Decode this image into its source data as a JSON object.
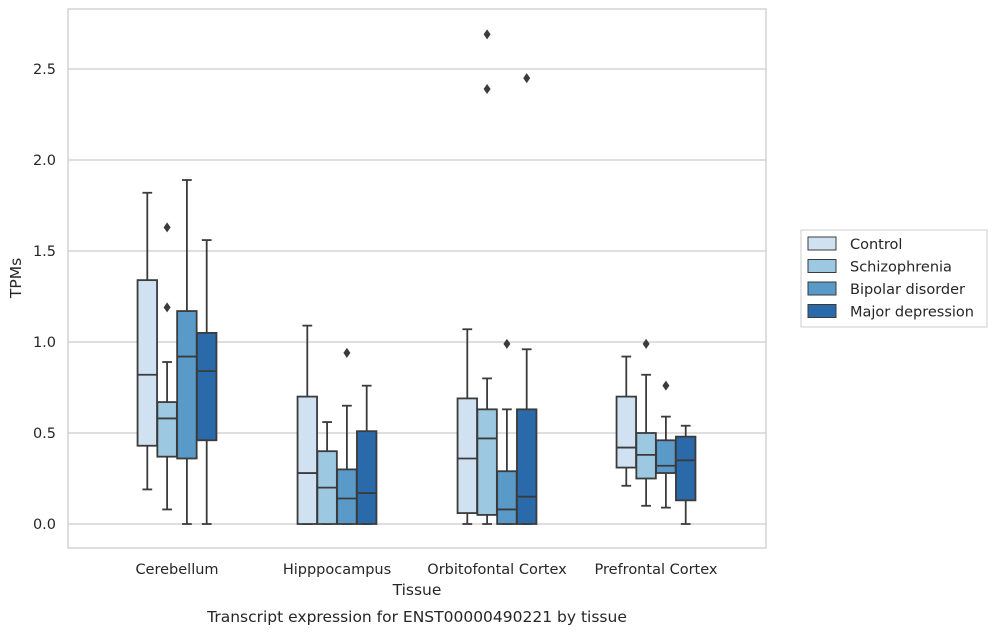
{
  "chart_data": {
    "type": "box",
    "title": "",
    "caption": "Transcript expression for ENST00000490221 by tissue",
    "xlabel": "Tissue",
    "ylabel": "TPMs",
    "ylim": [
      -0.13,
      2.85
    ],
    "yticks": [
      0.0,
      0.5,
      1.0,
      1.5,
      2.0,
      2.5
    ],
    "ytick_labels": [
      "0.0",
      "0.5",
      "1.0",
      "1.5",
      "2.0",
      "2.5"
    ],
    "grid": "horizontal",
    "legend_position": "right",
    "categories": [
      "Cerebellum",
      "Hipppocampus",
      "Orbitofontal Cortex",
      "Prefrontal Cortex"
    ],
    "series": [
      {
        "name": "Control",
        "color": "#d0e1f1",
        "boxes": [
          {
            "whislo": 0.19,
            "q1": 0.43,
            "med": 0.82,
            "q3": 1.34,
            "whishi": 1.82,
            "fliers": []
          },
          {
            "whislo": 0.0,
            "q1": 0.0,
            "med": 0.28,
            "q3": 0.7,
            "whishi": 1.09,
            "fliers": []
          },
          {
            "whislo": 0.0,
            "q1": 0.06,
            "med": 0.36,
            "q3": 0.69,
            "whishi": 1.07,
            "fliers": []
          },
          {
            "whislo": 0.21,
            "q1": 0.31,
            "med": 0.42,
            "q3": 0.7,
            "whishi": 0.92,
            "fliers": []
          }
        ]
      },
      {
        "name": "Schizophrenia",
        "color": "#9cc9e1",
        "boxes": [
          {
            "whislo": 0.08,
            "q1": 0.37,
            "med": 0.58,
            "q3": 0.67,
            "whishi": 0.89,
            "fliers": [
              1.19,
              1.63
            ]
          },
          {
            "whislo": 0.0,
            "q1": 0.0,
            "med": 0.2,
            "q3": 0.4,
            "whishi": 0.56,
            "fliers": []
          },
          {
            "whislo": 0.0,
            "q1": 0.05,
            "med": 0.47,
            "q3": 0.63,
            "whishi": 0.8,
            "fliers": [
              2.39,
              2.69
            ]
          },
          {
            "whislo": 0.1,
            "q1": 0.25,
            "med": 0.38,
            "q3": 0.5,
            "whishi": 0.82,
            "fliers": [
              0.99
            ]
          }
        ]
      },
      {
        "name": "Bipolar disorder",
        "color": "#5a9ac8",
        "boxes": [
          {
            "whislo": 0.0,
            "q1": 0.36,
            "med": 0.92,
            "q3": 1.17,
            "whishi": 1.89,
            "fliers": []
          },
          {
            "whislo": 0.0,
            "q1": 0.0,
            "med": 0.14,
            "q3": 0.3,
            "whishi": 0.65,
            "fliers": [
              0.94
            ]
          },
          {
            "whislo": 0.0,
            "q1": 0.0,
            "med": 0.08,
            "q3": 0.29,
            "whishi": 0.63,
            "fliers": [
              0.99
            ]
          },
          {
            "whislo": 0.09,
            "q1": 0.28,
            "med": 0.32,
            "q3": 0.46,
            "whishi": 0.59,
            "fliers": [
              0.76
            ]
          }
        ]
      },
      {
        "name": "Major depression",
        "color": "#2a6aaa",
        "boxes": [
          {
            "whislo": 0.0,
            "q1": 0.46,
            "med": 0.84,
            "q3": 1.05,
            "whishi": 1.56,
            "fliers": []
          },
          {
            "whislo": 0.0,
            "q1": 0.0,
            "med": 0.17,
            "q3": 0.51,
            "whishi": 0.76,
            "fliers": []
          },
          {
            "whislo": 0.0,
            "q1": 0.0,
            "med": 0.15,
            "q3": 0.63,
            "whishi": 0.96,
            "fliers": [
              2.45
            ]
          },
          {
            "whislo": 0.0,
            "q1": 0.13,
            "med": 0.35,
            "q3": 0.48,
            "whishi": 0.54,
            "fliers": []
          }
        ]
      }
    ]
  }
}
